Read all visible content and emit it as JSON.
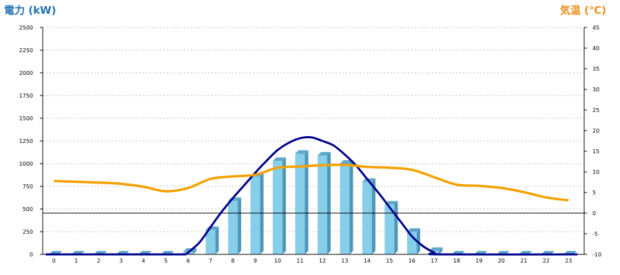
{
  "chart_data": {
    "type": "bar",
    "ylabel": "電力 (kW)",
    "y2label": "気温 (℃)",
    "categories": [
      "0",
      "1",
      "2",
      "3",
      "4",
      "5",
      "6",
      "7",
      "8",
      "9",
      "10",
      "11",
      "12",
      "13",
      "14",
      "15",
      "16",
      "17",
      "18",
      "19",
      "20",
      "21",
      "22",
      "23"
    ],
    "ylim": [
      0,
      2500
    ],
    "yticks": [
      0,
      250,
      500,
      750,
      1000,
      1250,
      1500,
      1750,
      2000,
      2250,
      2500
    ],
    "y2lim": [
      -10,
      45
    ],
    "y2ticks": [
      -10,
      -5,
      0,
      5,
      10,
      15,
      20,
      25,
      30,
      35,
      40,
      45
    ],
    "grid": true,
    "series": [
      {
        "kind": "bar",
        "axis": "left",
        "values": [
          0,
          0,
          0,
          0,
          0,
          0,
          30,
          270,
          590,
          860,
          1030,
          1110,
          1090,
          1000,
          800,
          550,
          250,
          40,
          0,
          0,
          0,
          0,
          0,
          0
        ]
      },
      {
        "kind": "line",
        "axis": "left",
        "smooth": true,
        "points": [
          [
            5.9,
            0
          ],
          [
            6.5,
            130
          ],
          [
            7,
            300
          ],
          [
            7.5,
            470
          ],
          [
            8,
            620
          ],
          [
            8.5,
            760
          ],
          [
            9,
            900
          ],
          [
            9.5,
            1030
          ],
          [
            10,
            1150
          ],
          [
            10.5,
            1230
          ],
          [
            11,
            1280
          ],
          [
            11.5,
            1290
          ],
          [
            12,
            1250
          ],
          [
            12.5,
            1200
          ],
          [
            13,
            1100
          ],
          [
            13.5,
            980
          ],
          [
            14,
            830
          ],
          [
            14.5,
            680
          ],
          [
            15,
            520
          ],
          [
            15.5,
            360
          ],
          [
            16,
            200
          ],
          [
            16.5,
            90
          ],
          [
            17,
            20
          ],
          [
            17.3,
            0
          ],
          [
            23.4,
            0
          ]
        ]
      },
      {
        "kind": "line",
        "axis": "right",
        "points": [
          [
            0,
            7.8
          ],
          [
            1,
            7.6
          ],
          [
            2,
            7.4
          ],
          [
            3,
            7.1
          ],
          [
            4,
            6.4
          ],
          [
            5,
            5.3
          ],
          [
            6,
            6.1
          ],
          [
            7,
            8.3
          ],
          [
            8,
            8.9
          ],
          [
            9,
            9.3
          ],
          [
            10,
            11.0
          ],
          [
            11,
            11.3
          ],
          [
            12,
            11.6
          ],
          [
            13,
            11.7
          ],
          [
            14,
            11.2
          ],
          [
            15,
            11.0
          ],
          [
            16,
            10.5
          ],
          [
            17,
            8.7
          ],
          [
            18,
            6.9
          ],
          [
            19,
            6.6
          ],
          [
            20,
            6.1
          ],
          [
            21,
            5.1
          ],
          [
            22,
            3.8
          ],
          [
            23,
            3.1
          ]
        ]
      }
    ],
    "colors": {
      "bar_front": "#87ceeb",
      "bar_side": "#4f97b8",
      "bar_top": "#5fa8cc",
      "power_line": "#00008b",
      "temp_line": "#f5a000",
      "left_axis_text": "#1e72b5",
      "right_axis_text": "#f08c19"
    }
  }
}
